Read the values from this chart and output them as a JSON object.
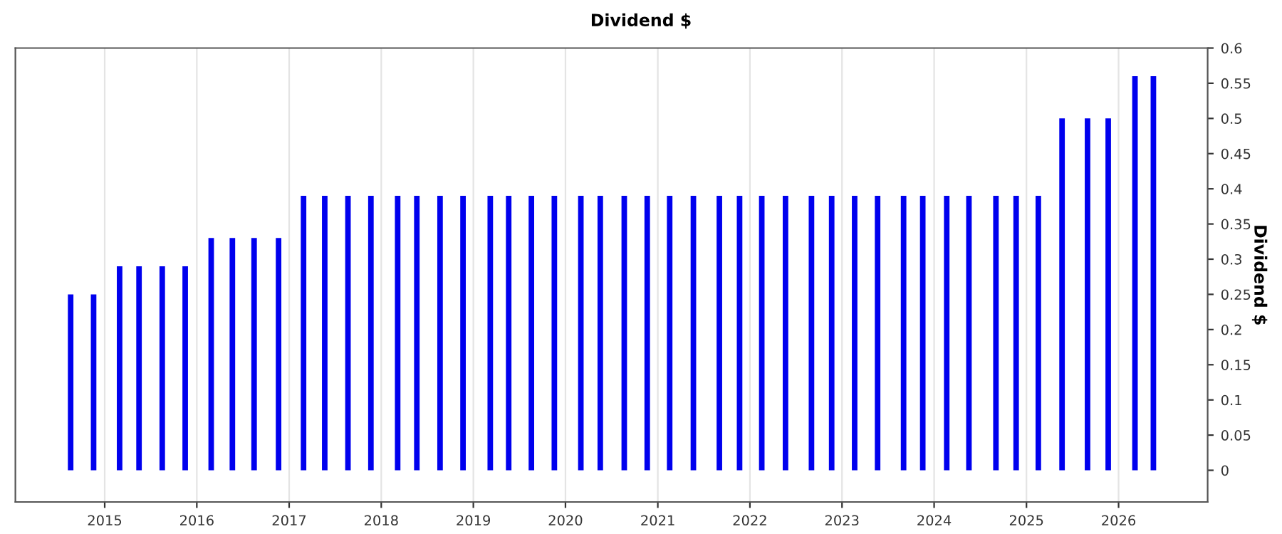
{
  "chart_data": {
    "type": "bar",
    "title": "Dividend $",
    "ylabel": "Dividend $",
    "x": [
      "2014-08-19",
      "2014-11-18",
      "2015-03-01",
      "2015-05-17",
      "2015-08-17",
      "2015-11-16",
      "2016-02-27",
      "2016-05-21",
      "2016-08-15",
      "2016-11-20",
      "2017-02-27",
      "2017-05-22",
      "2017-08-22",
      "2017-11-21",
      "2018-03-07",
      "2018-05-22",
      "2018-08-22",
      "2018-11-21",
      "2019-03-09",
      "2019-05-21",
      "2019-08-19",
      "2019-11-18",
      "2020-03-02",
      "2020-05-18",
      "2020-08-21",
      "2020-11-20",
      "2021-02-17",
      "2021-05-22",
      "2021-09-02",
      "2021-11-21",
      "2022-02-17",
      "2022-05-22",
      "2022-09-02",
      "2022-11-21",
      "2023-02-20",
      "2023-05-22",
      "2023-09-02",
      "2023-11-17",
      "2024-02-20",
      "2024-05-18",
      "2024-09-02",
      "2024-11-21",
      "2025-02-17",
      "2025-05-22",
      "2025-08-31",
      "2025-11-21",
      "2026-03-07",
      "2026-05-19"
    ],
    "series": [
      {
        "color": "#0000ee",
        "values": [
          0.25,
          0.25,
          0.29,
          0.29,
          0.29,
          0.29,
          0.33,
          0.33,
          0.33,
          0.33,
          0.39,
          0.39,
          0.39,
          0.39,
          0.39,
          0.39,
          0.39,
          0.39,
          0.39,
          0.39,
          0.39,
          0.39,
          0.39,
          0.39,
          0.39,
          0.39,
          0.39,
          0.39,
          0.39,
          0.39,
          0.39,
          0.39,
          0.39,
          0.39,
          0.39,
          0.39,
          0.39,
          0.39,
          0.39,
          0.39,
          0.39,
          0.39,
          0.39,
          0.5,
          0.5,
          0.5,
          0.56,
          0.56
        ]
      }
    ],
    "xlim": [
      "2014-01-12",
      "2026-12-20"
    ],
    "xticks": [
      "2015",
      "2016",
      "2017",
      "2018",
      "2019",
      "2020",
      "2021",
      "2022",
      "2023",
      "2024",
      "2025",
      "2026"
    ],
    "ylim": [
      -0.045,
      0.6
    ],
    "yticks": [
      0,
      0.05,
      0.1,
      0.15,
      0.2,
      0.25,
      0.3,
      0.35,
      0.4,
      0.45,
      0.5,
      0.55,
      0.6
    ],
    "grid": "x"
  }
}
